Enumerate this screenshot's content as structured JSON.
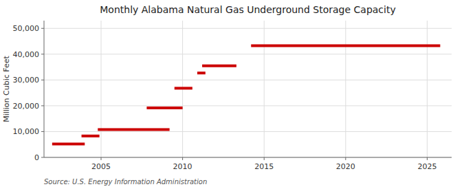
{
  "chart_data": {
    "type": "segments",
    "title": "Monthly Alabama Natural Gas Underground Storage Capacity",
    "ylabel": "Million Cubic Feet",
    "source": "Source: U.S. Energy Information Administration",
    "color": "#cc0000",
    "grid": true,
    "xlim": [
      2001.5,
      2026.5
    ],
    "ylim": [
      0,
      53000
    ],
    "xticks": [
      2005,
      2010,
      2015,
      2020,
      2025
    ],
    "yticks": [
      0,
      {
        "value": 10000,
        "label": "10,000"
      },
      {
        "value": 20000,
        "label": "20,000"
      },
      {
        "value": 30000,
        "label": "30,000"
      },
      {
        "value": 40000,
        "label": "40,000"
      },
      {
        "value": 50000,
        "label": "50,000"
      }
    ],
    "x_start": [
      2002.0,
      2003.8,
      2004.8,
      2007.8,
      2009.5,
      2010.9,
      2011.2,
      2014.2
    ],
    "x_end": [
      2004.0,
      2004.9,
      2009.2,
      2010.0,
      2010.6,
      2011.4,
      2013.3,
      2025.8
    ],
    "values": [
      5200,
      8300,
      10800,
      19200,
      26800,
      32700,
      35500,
      43300
    ]
  }
}
